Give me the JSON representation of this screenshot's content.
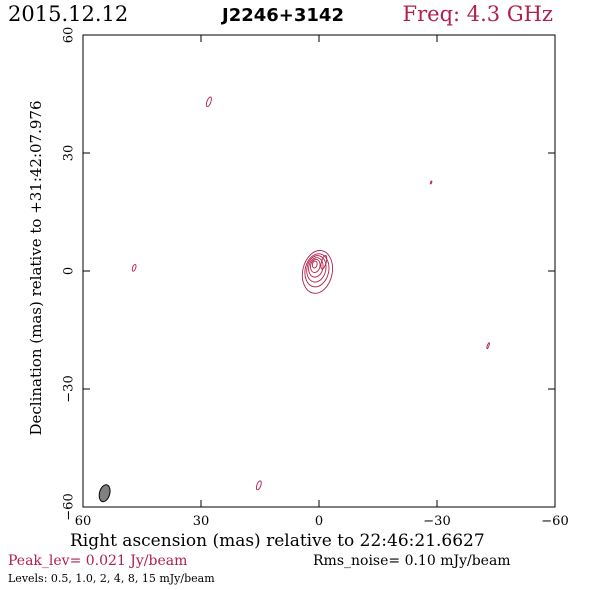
{
  "header": {
    "date": "2015.12.12",
    "source": "J2246+3142",
    "freq": "Freq: 4.3 GHz"
  },
  "axes": {
    "xlabel": "Right ascension (mas) relative to 22:46:21.6627",
    "ylabel": "Declination (mas) relative to +31:42:07.976"
  },
  "footer": {
    "peak": "Peak_lev=  0.021 Jy/beam",
    "rms": "Rms_noise= 0.10 mJy/beam",
    "levels": "Levels: 0.5, 1.0,   2,   4,   8,  15 mJy/beam"
  },
  "colors": {
    "contour": "#b0204a",
    "beam": "#808080",
    "frame": "#000000"
  },
  "chart_data": {
    "type": "contour",
    "xlim": [
      60,
      -60
    ],
    "ylim": [
      -60,
      60
    ],
    "x_ticks": [
      60,
      30,
      0,
      -30,
      -60
    ],
    "y_ticks": [
      -60,
      -30,
      0,
      30,
      60
    ],
    "x_tick_labels": [
      "60",
      "30",
      "0",
      "−30",
      "−60"
    ],
    "y_tick_labels": [
      "−60",
      "−30",
      "0",
      "30",
      "60"
    ],
    "levels_mJy": [
      0.5,
      1.0,
      2,
      4,
      8,
      15
    ],
    "core": {
      "x": 0.3,
      "y": 0.2,
      "contours": [
        {
          "level": 0.5,
          "w": 7.5,
          "h": 11.0
        },
        {
          "level": 1.0,
          "w": 6.0,
          "h": 8.5
        },
        {
          "level": 2,
          "w": 4.8,
          "h": 6.8
        },
        {
          "level": 4,
          "w": 3.6,
          "h": 5.0
        },
        {
          "level": 8,
          "w": 2.4,
          "h": 3.4
        },
        {
          "level": 15,
          "w": 1.2,
          "h": 1.8
        }
      ]
    },
    "noise_islands": [
      {
        "x": 28,
        "y": 43,
        "w": 1.0,
        "h": 2.6
      },
      {
        "x": 47,
        "y": 0.8,
        "w": 0.8,
        "h": 1.8
      },
      {
        "x": -28.5,
        "y": 22.5,
        "w": 0.2,
        "h": 0.8
      },
      {
        "x": -43,
        "y": -19,
        "w": 0.4,
        "h": 1.6
      },
      {
        "x": 15.3,
        "y": -54.5,
        "w": 1.0,
        "h": 2.4
      }
    ],
    "beam": {
      "x": 54.5,
      "y": -56.5,
      "major": 4.4,
      "minor": 2.6,
      "pa_deg": 15
    }
  }
}
